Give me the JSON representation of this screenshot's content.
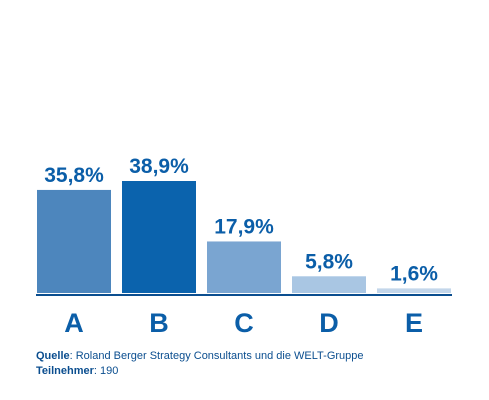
{
  "chart_data": {
    "type": "bar",
    "categories": [
      "A",
      "B",
      "C",
      "D",
      "E"
    ],
    "values": [
      35.8,
      38.9,
      17.9,
      5.8,
      1.6
    ],
    "value_labels": [
      "35,8%",
      "38,9%",
      "17,9%",
      "5,8%",
      "1,6%"
    ],
    "bar_colors": [
      "#4d86bd",
      "#0b63ad",
      "#7aa5d1",
      "#a9c6e3",
      "#c3d6ea"
    ],
    "axis_color": "#0b4e8f",
    "label_color": "#0b5ea8",
    "ylim": [
      0,
      38.9
    ],
    "grid": false,
    "title": "",
    "xlabel": "",
    "ylabel": ""
  },
  "footer": {
    "source_label": "Quelle",
    "source_text": ": Roland Berger Strategy Consultants und die WELT-Gruppe",
    "participants_label": "Teilnehmer",
    "participants_text": ": 190"
  }
}
